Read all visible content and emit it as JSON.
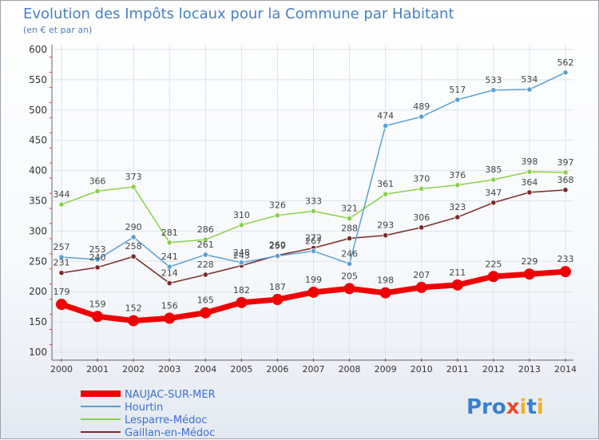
{
  "chart_data": {
    "type": "line",
    "title": "Evolution des Impôts locaux pour la Commune par Habitant",
    "subtitle": "(en € et par an)",
    "xlabel": "",
    "ylabel": "",
    "ylim": [
      100,
      600
    ],
    "yticks": [
      100,
      150,
      200,
      250,
      300,
      350,
      400,
      450,
      500,
      550,
      600
    ],
    "grid": true,
    "legend_position": "bottom-left",
    "categories": [
      "2000",
      "2001",
      "2002",
      "2003",
      "2004",
      "2005",
      "2006",
      "2007",
      "2008",
      "2009",
      "2010",
      "2011",
      "2012",
      "2013",
      "2014"
    ],
    "series": [
      {
        "name": "NAUJAC-SUR-MER",
        "color": "#ee0000",
        "values": [
          179,
          159,
          152,
          156,
          165,
          182,
          187,
          199,
          205,
          198,
          207,
          211,
          225,
          229,
          233
        ]
      },
      {
        "name": "Hourtin",
        "color": "#5a9fd4",
        "values": [
          257,
          253,
          290,
          241,
          261,
          248,
          259,
          267,
          246,
          474,
          489,
          517,
          533,
          534,
          562
        ]
      },
      {
        "name": "Lesparre-Médoc",
        "color": "#88d04b",
        "values": [
          344,
          366,
          373,
          281,
          286,
          310,
          326,
          333,
          321,
          361,
          370,
          376,
          385,
          398,
          397
        ]
      },
      {
        "name": "Gaillan-en-Médoc",
        "color": "#7a2a2a",
        "values": [
          231,
          240,
          258,
          214,
          228,
          243,
          260,
          272,
          288,
          293,
          306,
          323,
          347,
          364,
          368
        ]
      }
    ]
  },
  "logo": {
    "text": "Proxiti"
  }
}
